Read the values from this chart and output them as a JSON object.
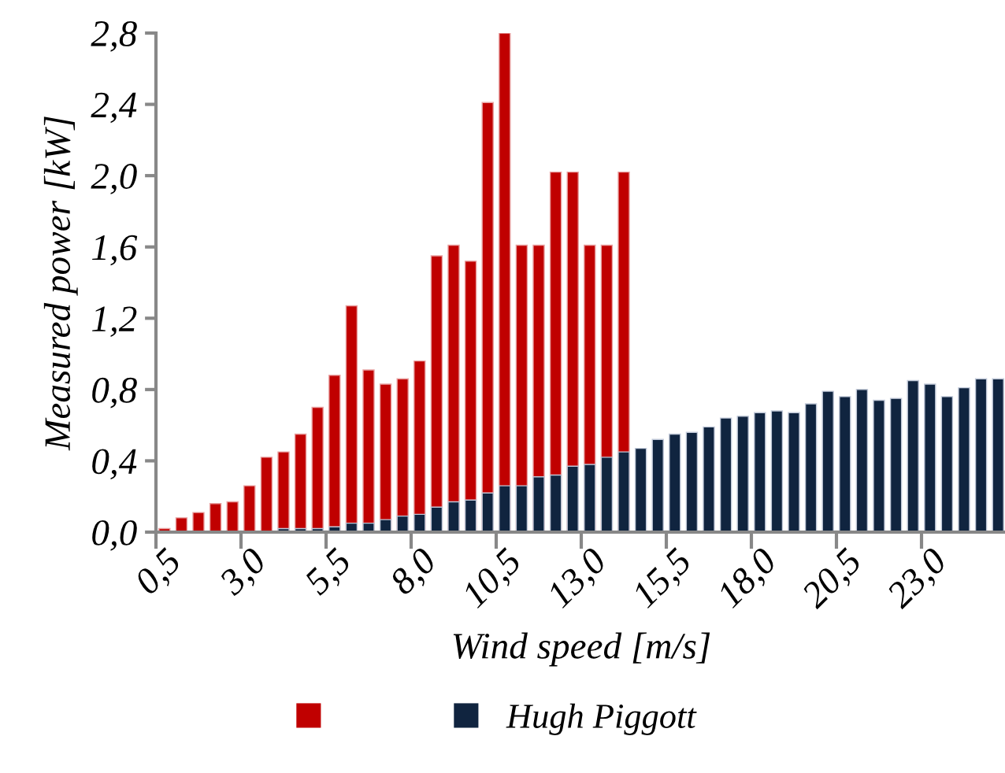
{
  "chart_data": {
    "type": "bar",
    "xlabel": "Wind speed [m/s]",
    "ylabel": "Measured power [kW]",
    "categories": [
      "0,5",
      null,
      null,
      null,
      null,
      "3,0",
      null,
      null,
      null,
      null,
      "5,5",
      null,
      null,
      null,
      null,
      "8,0",
      null,
      null,
      null,
      null,
      "10,5",
      null,
      null,
      null,
      null,
      "13,0",
      null,
      null,
      null,
      null,
      "15,5",
      null,
      null,
      null,
      null,
      "18,0",
      null,
      null,
      null,
      null,
      "20,5",
      null,
      null,
      null,
      null,
      "23,0",
      null,
      null,
      null,
      null
    ],
    "series": [
      {
        "color": "#c00000",
        "values": [
          0.02,
          0.08,
          0.11,
          0.16,
          0.17,
          0.26,
          0.42,
          0.45,
          0.55,
          0.7,
          0.88,
          1.27,
          0.91,
          0.83,
          0.86,
          0.96,
          1.55,
          1.61,
          1.52,
          2.41,
          2.8,
          1.61,
          1.61,
          2.02,
          2.02,
          1.61,
          1.61,
          2.02,
          null,
          null,
          null,
          null,
          null,
          null,
          null,
          null,
          null,
          null,
          null,
          null,
          null,
          null,
          null,
          null,
          null,
          null,
          null,
          null,
          null,
          null
        ]
      },
      {
        "name": "Hugh Piggott",
        "color": "#10243f",
        "values": [
          null,
          null,
          null,
          null,
          null,
          null,
          null,
          0.02,
          0.02,
          0.02,
          0.03,
          0.05,
          0.05,
          0.07,
          0.09,
          0.1,
          0.14,
          0.17,
          0.18,
          0.22,
          0.26,
          0.26,
          0.31,
          0.32,
          0.37,
          0.38,
          0.42,
          0.45,
          0.47,
          0.52,
          0.55,
          0.56,
          0.59,
          0.64,
          0.65,
          0.67,
          0.68,
          0.67,
          0.72,
          0.79,
          0.76,
          0.8,
          0.74,
          0.75,
          0.85,
          0.83,
          0.76,
          0.81,
          0.86,
          0.86
        ]
      }
    ],
    "ylim": [
      0,
      2.8
    ],
    "yticks": [
      {
        "value": 0,
        "label": "0,0"
      },
      {
        "value": 0.4,
        "label": "0,4"
      },
      {
        "value": 0.8,
        "label": "0,8"
      },
      {
        "value": 1.2,
        "label": "1,2"
      },
      {
        "value": 1.6,
        "label": "1,6"
      },
      {
        "value": 2.0,
        "label": "2,0"
      },
      {
        "value": 2.4,
        "label": "2,4"
      },
      {
        "value": 2.8,
        "label": "2,8"
      }
    ],
    "grid": false,
    "legend": "bottom"
  }
}
